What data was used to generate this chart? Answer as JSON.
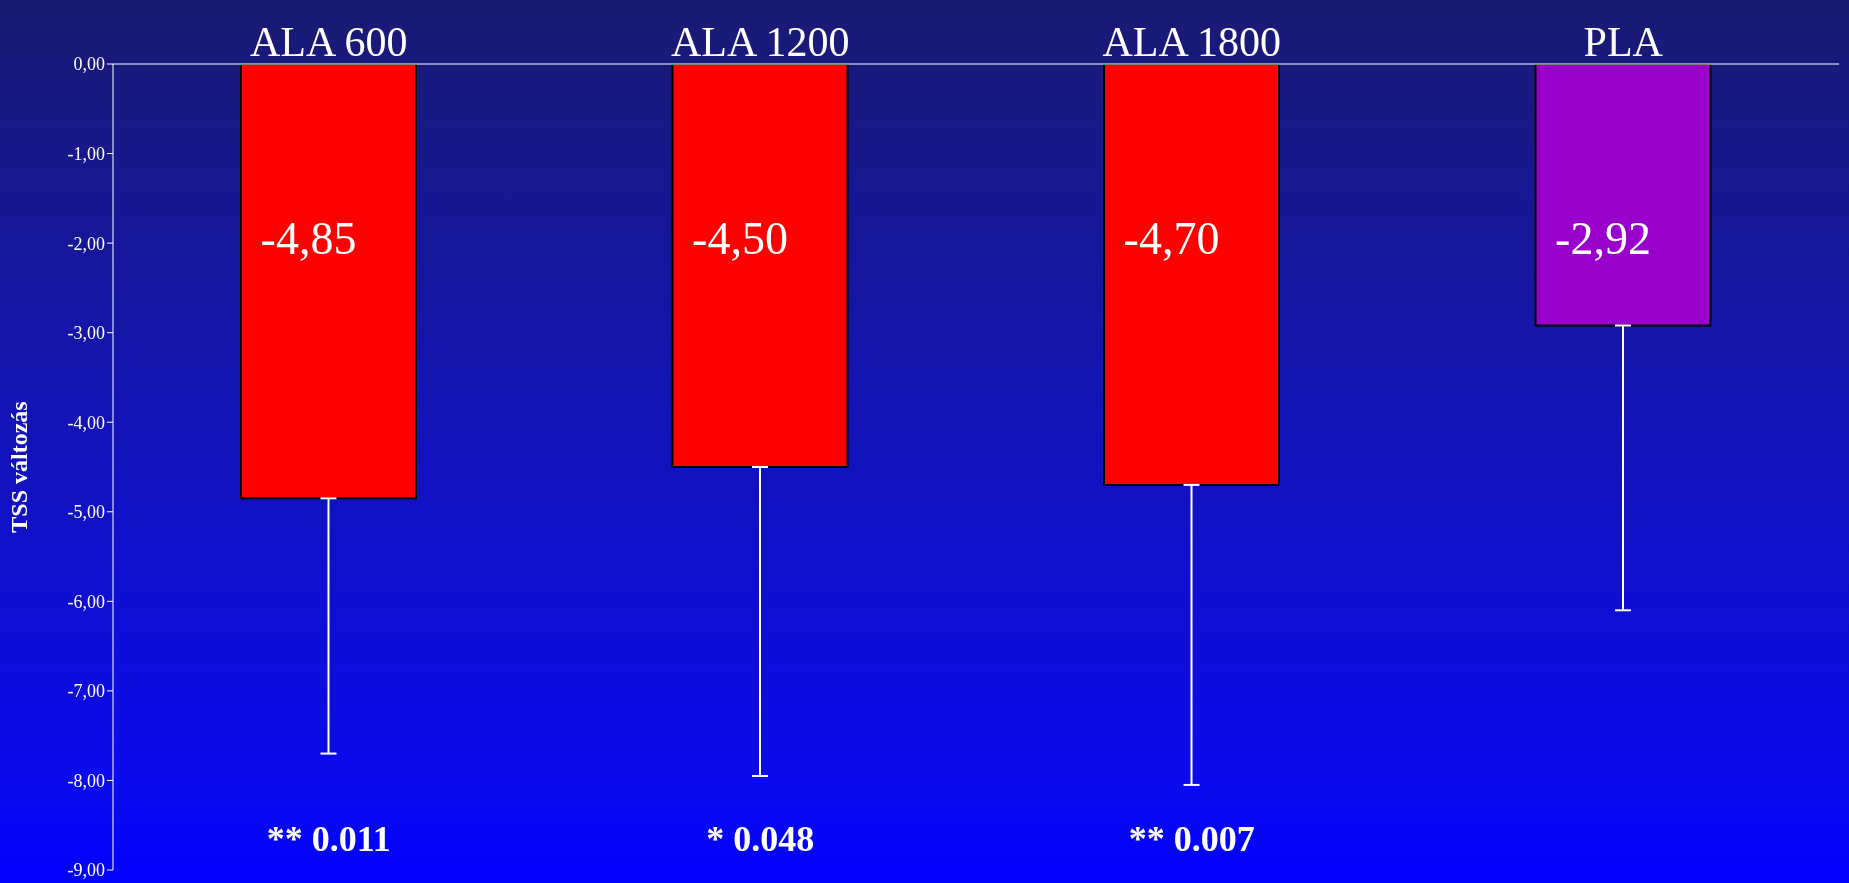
{
  "chart_data": {
    "type": "bar",
    "ylabel": "TSS  változás",
    "categories": [
      "ALA 600",
      "ALA 1200",
      "ALA 1800",
      "PLA"
    ],
    "values": [
      -4.85,
      -4.5,
      -4.7,
      -2.92
    ],
    "colors": [
      "#ff0000",
      "#ff0000",
      "#ff0000",
      "#9900cc"
    ],
    "value_labels": [
      "-4,85",
      "-4,50",
      "-4,70",
      "-2,92"
    ],
    "errors": [
      [
        -7.7,
        -4.85
      ],
      [
        -7.95,
        -4.5
      ],
      [
        -8.05,
        -4.7
      ],
      [
        -6.1,
        -2.92
      ]
    ],
    "ylim": [
      -9,
      0
    ],
    "yticks": [
      {
        "value": 0,
        "label": "0,00"
      },
      {
        "value": -1,
        "label": "-1,00"
      },
      {
        "value": -2,
        "label": "-2,00"
      },
      {
        "value": -3,
        "label": "-3,00"
      },
      {
        "value": -4,
        "label": "-4,00"
      },
      {
        "value": -5,
        "label": "-5,00"
      },
      {
        "value": -6,
        "label": "-6,00"
      },
      {
        "value": -7,
        "label": "-7,00"
      },
      {
        "value": -8,
        "label": "-8,00"
      },
      {
        "value": -9,
        "label": "-9,00"
      }
    ],
    "annotations": [
      "** 0.011",
      "* 0.048",
      "** 0.007"
    ],
    "grid": false,
    "legend": false
  }
}
